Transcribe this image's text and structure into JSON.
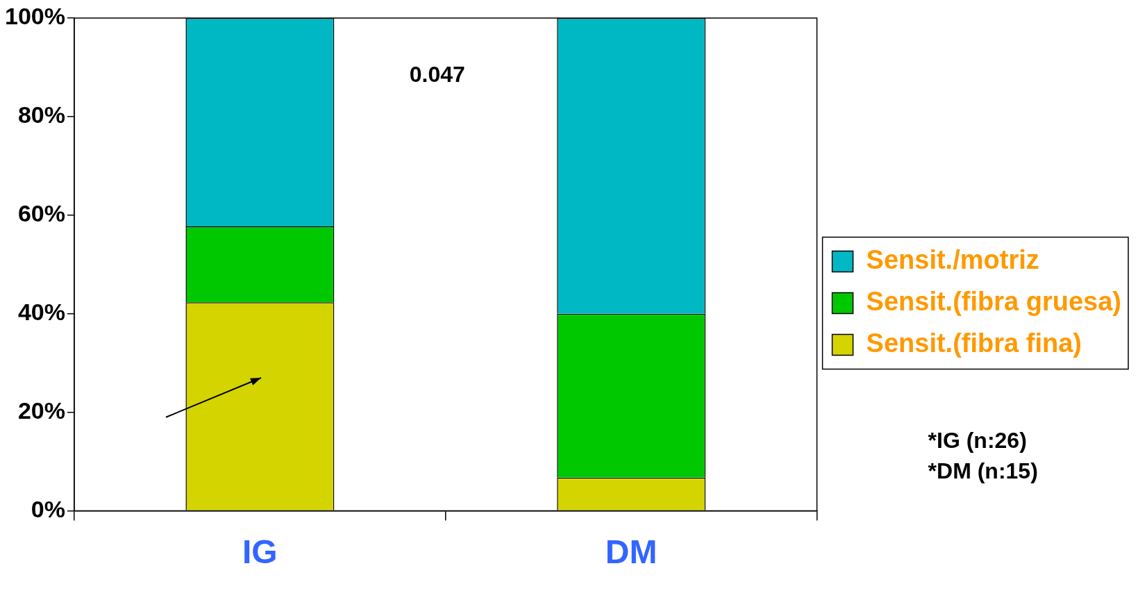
{
  "chart_data": {
    "type": "bar",
    "stacked": true,
    "categories": [
      "IG",
      "DM"
    ],
    "series": [
      {
        "name": "Sensit.(fibra fina)",
        "color": "#d4d400",
        "values": [
          42.3,
          6.7
        ]
      },
      {
        "name": "Sensit.(fibra gruesa)",
        "color": "#00c800",
        "values": [
          15.4,
          33.3
        ]
      },
      {
        "name": "Sensit./motriz",
        "color": "#00b8c4",
        "values": [
          42.3,
          60
        ]
      }
    ],
    "ylim": [
      0,
      100
    ],
    "yticks": [
      {
        "value": 0,
        "label": "0%"
      },
      {
        "value": 20,
        "label": "20%"
      },
      {
        "value": 40,
        "label": "40%"
      },
      {
        "value": 60,
        "label": "60%"
      },
      {
        "value": 80,
        "label": "80%"
      },
      {
        "value": 100,
        "label": "100%"
      }
    ],
    "grid": false,
    "legend": "right",
    "annotations": [
      "0.047",
      "*IG (n:26)",
      "*DM (n:15)"
    ]
  }
}
